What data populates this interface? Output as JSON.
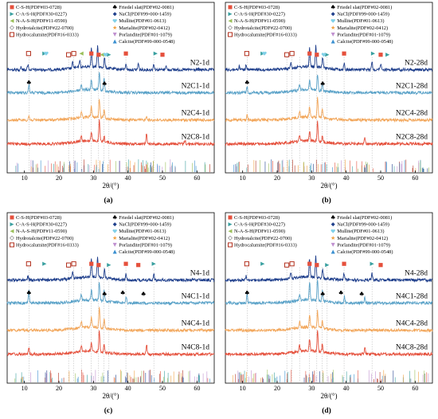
{
  "figure": {
    "xlabel": "2θ/(°)",
    "xlim": [
      5,
      65
    ],
    "xticks": [
      10,
      20,
      30,
      40,
      50,
      60
    ],
    "colors": {
      "navy": "#1f3f8c",
      "teal": "#5aa2c8",
      "orange": "#f2a65a",
      "red": "#e5503c",
      "frame": "#000000"
    }
  },
  "legend_entries": {
    "CSH": {
      "label": "C-S-H(PDF#03-0728)",
      "symbol": "square",
      "color": "#e5503c"
    },
    "CASH": {
      "label": "C-A-S-H(PDF#30-0227)",
      "symbol": "tri-right",
      "color": "#3aa0a0"
    },
    "NASH": {
      "label": "N-A-S-H(PDF#11-0590)",
      "symbol": "tri-left",
      "color": "#9bbf5a"
    },
    "HT": {
      "label": "Hydrotalcite(PDF#22-0700)",
      "symbol": "diamond-open",
      "color": "#999999"
    },
    "HC": {
      "label": "Hydrocalumite(PDF#16-0333)",
      "symbol": "square-open",
      "color": "#b2301d"
    },
    "FS": {
      "label": "Friedel slat(PDF#02-0081)",
      "symbol": "club",
      "color": "#000000"
    },
    "NaCl": {
      "label": "NaCl(PDF#99-000-1459)",
      "symbol": "diamond",
      "color": "#1f3f8c"
    },
    "Mullite": {
      "label": "Mullite(PDF#01-0613)",
      "symbol": "heart",
      "color": "#80d0e8"
    },
    "Marialite": {
      "label": "Marialite(PDF#02-0412)",
      "symbol": "star",
      "color": "#f0a040"
    },
    "Portlandite": {
      "label": "Porlandite(PDF#01-1079)",
      "symbol": "tri-down",
      "color": "#c090d0"
    },
    "Calcite": {
      "label": "Calcite(PDF#99-000-0548)",
      "symbol": "tri-up",
      "color": "#3a8fd0"
    }
  },
  "panels": [
    {
      "caption": "(a)",
      "legend_left": [
        "CSH",
        "CASH",
        "NASH",
        "HT",
        "HC"
      ],
      "legend_right": [
        "FS",
        "NaCl",
        "Mullite",
        "Marialite",
        "Portlandite",
        "Calcite"
      ],
      "series": [
        "N2-1d",
        "N2C1-1d",
        "N2C4-1d",
        "N2C8-1d"
      ]
    },
    {
      "caption": "(b)",
      "legend_left": [
        "CSH",
        "CASH",
        "NASH",
        "HT",
        "HC"
      ],
      "legend_right": [
        "FS",
        "NaCl",
        "Mullite",
        "Marialite",
        "Portlandite",
        "Calcite"
      ],
      "series": [
        "N2-28d",
        "N2C1-28d",
        "N2C4-28d",
        "N2C8-28d"
      ]
    },
    {
      "caption": "(c)",
      "legend_left": [
        "CSH",
        "CASH",
        "NASH",
        "HT",
        "HC"
      ],
      "legend_right": [
        "FS",
        "NaCl",
        "Mullite",
        "Marialite",
        "Portlandite",
        "Calcite"
      ],
      "series": [
        "N4-1d",
        "N4C1-1d",
        "N4C4-1d",
        "N4C8-1d"
      ]
    },
    {
      "caption": "(d)",
      "legend_left": [
        "CSH",
        "CASH",
        "NASH",
        "HT",
        "HC"
      ],
      "legend_right": [
        "FS",
        "NaCl",
        "Mullite",
        "Marialite",
        "Portlandite",
        "Calcite"
      ],
      "series": [
        "N4-28d",
        "N4C1-28d",
        "N4C4-28d",
        "N4C8-28d"
      ]
    }
  ],
  "chart_data": [
    {
      "type": "line",
      "panel": "(a)",
      "xlabel": "2θ/(°)",
      "xlim": [
        5,
        65
      ],
      "series": [
        {
          "name": "N2-1d",
          "peaks": [
            [
              9,
              0.15
            ],
            [
              11,
              0.25
            ],
            [
              24,
              0.3
            ],
            [
              26,
              0.35
            ],
            [
              29.4,
              0.9
            ],
            [
              31.2,
              1.0
            ],
            [
              33.2,
              0.5
            ],
            [
              39.4,
              0.3
            ],
            [
              43,
              0.3
            ],
            [
              47.5,
              0.3
            ],
            [
              51,
              0.2
            ]
          ]
        },
        {
          "name": "N2C1-1d",
          "peaks": [
            [
              11.3,
              0.4
            ],
            [
              26.5,
              0.3
            ],
            [
              29.4,
              0.5
            ],
            [
              31.7,
              0.9
            ],
            [
              33.1,
              0.6
            ]
          ]
        },
        {
          "name": "N2C4-1d",
          "peaks": [
            [
              11.3,
              0.2
            ],
            [
              26.5,
              0.3
            ],
            [
              29.4,
              0.5
            ],
            [
              31.7,
              0.9
            ],
            [
              33.1,
              0.4
            ],
            [
              45.4,
              0.2
            ]
          ]
        },
        {
          "name": "N2C8-1d",
          "peaks": [
            [
              26.5,
              0.3
            ],
            [
              29.4,
              0.4
            ],
            [
              31.7,
              1.0
            ],
            [
              33.1,
              0.3
            ],
            [
              45.4,
              0.5
            ],
            [
              56.5,
              0.2
            ]
          ]
        }
      ],
      "peak_markers": [
        {
          "phase": "HC",
          "x": [
            11.2,
            22.8,
            24.3
          ]
        },
        {
          "phase": "CSH",
          "x": [
            29.4,
            31.5,
            39.4,
            50.0
          ]
        },
        {
          "phase": "CASH",
          "x": [
            15.8,
            34.5,
            48.0
          ]
        },
        {
          "phase": "NASH",
          "x": [
            26.5,
            32.5
          ]
        },
        {
          "phase": "Mullite",
          "x": [
            16.3,
            33.5
          ]
        },
        {
          "phase": "FS",
          "x": [
            11.3,
            33.2
          ]
        }
      ]
    },
    {
      "type": "line",
      "panel": "(b)",
      "xlabel": "2θ/(°)",
      "xlim": [
        5,
        65
      ],
      "series": [
        {
          "name": "N2-28d",
          "peaks": [
            [
              9,
              0.15
            ],
            [
              11,
              0.2
            ],
            [
              24,
              0.3
            ],
            [
              29.4,
              0.9
            ],
            [
              31.2,
              1.0
            ],
            [
              33.2,
              0.5
            ],
            [
              39.4,
              0.3
            ],
            [
              47.5,
              0.4
            ],
            [
              50,
              0.3
            ]
          ]
        },
        {
          "name": "N2C1-28d",
          "peaks": [
            [
              11.3,
              0.3
            ],
            [
              26.5,
              0.3
            ],
            [
              29.4,
              0.5
            ],
            [
              31.7,
              0.8
            ],
            [
              33.1,
              0.4
            ]
          ]
        },
        {
          "name": "N2C4-28d",
          "peaks": [
            [
              11.3,
              0.3
            ],
            [
              26.5,
              0.3
            ],
            [
              29.4,
              0.5
            ],
            [
              31.7,
              1.0
            ],
            [
              33.1,
              0.5
            ]
          ]
        },
        {
          "name": "N2C8-28d",
          "peaks": [
            [
              26.5,
              0.3
            ],
            [
              29.4,
              0.5
            ],
            [
              31.7,
              1.0
            ],
            [
              33.1,
              0.3
            ],
            [
              45.4,
              0.3
            ]
          ]
        }
      ],
      "peak_markers": [
        {
          "phase": "HC",
          "x": [
            11.2,
            22.8,
            24.3
          ]
        },
        {
          "phase": "CSH",
          "x": [
            29.4,
            31.5,
            39.4,
            50.0
          ]
        },
        {
          "phase": "CASH",
          "x": [
            15.8,
            34.5,
            47.8,
            52.0
          ]
        },
        {
          "phase": "Mullite",
          "x": [
            16.3,
            33.5
          ]
        },
        {
          "phase": "FS",
          "x": [
            11.3,
            33.2
          ]
        }
      ]
    },
    {
      "type": "line",
      "panel": "(c)",
      "xlabel": "2θ/(°)",
      "xlim": [
        5,
        65
      ],
      "series": [
        {
          "name": "N4-1d",
          "peaks": [
            [
              11,
              0.2
            ],
            [
              24,
              0.3
            ],
            [
              29.4,
              0.9
            ],
            [
              31.2,
              1.0
            ],
            [
              33.2,
              0.4
            ],
            [
              39.4,
              0.3
            ],
            [
              47.5,
              0.3
            ]
          ]
        },
        {
          "name": "N4C1-1d",
          "peaks": [
            [
              11.3,
              0.6
            ],
            [
              26.5,
              0.3
            ],
            [
              29.4,
              0.5
            ],
            [
              31.7,
              0.9
            ],
            [
              33.1,
              0.5
            ],
            [
              39.5,
              0.3
            ]
          ]
        },
        {
          "name": "N4C4-1d",
          "peaks": [
            [
              26.5,
              0.3
            ],
            [
              29.4,
              0.5
            ],
            [
              31.7,
              1.0
            ],
            [
              33.1,
              0.4
            ]
          ]
        },
        {
          "name": "N4C8-1d",
          "peaks": [
            [
              11.3,
              0.3
            ],
            [
              26.5,
              0.3
            ],
            [
              29.4,
              0.4
            ],
            [
              31.7,
              1.0
            ],
            [
              33.1,
              0.4
            ],
            [
              45.4,
              0.5
            ]
          ]
        }
      ],
      "peak_markers": [
        {
          "phase": "HC",
          "x": [
            11.2,
            22.8,
            24.3
          ]
        },
        {
          "phase": "CSH",
          "x": [
            29.4,
            31.5,
            39.4,
            43.0
          ]
        },
        {
          "phase": "CASH",
          "x": [
            15.8,
            34.5,
            47.5
          ]
        },
        {
          "phase": "FS",
          "x": [
            11.3,
            33.2,
            38.5,
            44.5
          ]
        }
      ]
    },
    {
      "type": "line",
      "panel": "(d)",
      "xlabel": "2θ/(°)",
      "xlim": [
        5,
        65
      ],
      "series": [
        {
          "name": "N4-28d",
          "peaks": [
            [
              11,
              0.2
            ],
            [
              24,
              0.3
            ],
            [
              29.4,
              0.9
            ],
            [
              31.2,
              1.0
            ],
            [
              33.2,
              0.4
            ],
            [
              39.4,
              0.3
            ],
            [
              47.5,
              0.3
            ]
          ]
        },
        {
          "name": "N4C1-28d",
          "peaks": [
            [
              11.3,
              0.4
            ],
            [
              26.5,
              0.3
            ],
            [
              29.4,
              0.9
            ],
            [
              31.7,
              1.0
            ],
            [
              33.1,
              0.5
            ],
            [
              39.5,
              0.3
            ],
            [
              45.4,
              0.3
            ]
          ]
        },
        {
          "name": "N4C4-28d",
          "peaks": [
            [
              26.5,
              0.3
            ],
            [
              29.4,
              0.6
            ],
            [
              31.7,
              0.8
            ],
            [
              33.1,
              0.4
            ]
          ]
        },
        {
          "name": "N4C8-28d",
          "peaks": [
            [
              26.5,
              0.3
            ],
            [
              29.4,
              0.6
            ],
            [
              31.7,
              1.0
            ],
            [
              33.1,
              0.4
            ],
            [
              45.4,
              0.3
            ]
          ]
        }
      ],
      "peak_markers": [
        {
          "phase": "HC",
          "x": [
            11.2,
            22.8,
            24.3
          ]
        },
        {
          "phase": "CSH",
          "x": [
            29.4,
            31.5,
            39.4,
            50.0
          ]
        },
        {
          "phase": "CASH",
          "x": [
            15.8,
            34.5,
            47.5
          ]
        },
        {
          "phase": "FS",
          "x": [
            11.3,
            33.2,
            38.5,
            44.5
          ]
        }
      ]
    }
  ]
}
